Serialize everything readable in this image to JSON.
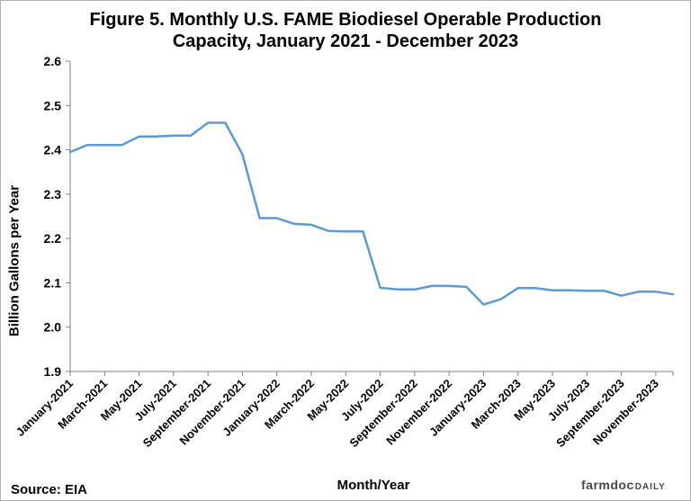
{
  "chart_data": {
    "type": "line",
    "title_line1": "Figure 5. Monthly U.S. FAME Biodiesel Operable Production",
    "title_line2": "Capacity, January 2021 - December 2023",
    "xlabel": "Month/Year",
    "ylabel": "Billion Gallons per Year",
    "ylim": [
      1.9,
      2.6
    ],
    "yticks": [
      "1.9",
      "2.0",
      "2.1",
      "2.2",
      "2.3",
      "2.4",
      "2.5",
      "2.6"
    ],
    "grid": false,
    "line_color": "#5b9bd5",
    "xtick_labels": [
      "January-2021",
      "March-2021",
      "May-2021",
      "July-2021",
      "September-2021",
      "November-2021",
      "January-2022",
      "March-2022",
      "May-2022",
      "July-2022",
      "September-2022",
      "November-2022",
      "January-2023",
      "March-2023",
      "May-2023",
      "July-2023",
      "September-2023",
      "November-2023"
    ],
    "categories": [
      "Jan-2021",
      "Feb-2021",
      "Mar-2021",
      "Apr-2021",
      "May-2021",
      "Jun-2021",
      "Jul-2021",
      "Aug-2021",
      "Sep-2021",
      "Oct-2021",
      "Nov-2021",
      "Dec-2021",
      "Jan-2022",
      "Feb-2022",
      "Mar-2022",
      "Apr-2022",
      "May-2022",
      "Jun-2022",
      "Jul-2022",
      "Aug-2022",
      "Sep-2022",
      "Oct-2022",
      "Nov-2022",
      "Dec-2022",
      "Jan-2023",
      "Feb-2023",
      "Mar-2023",
      "Apr-2023",
      "May-2023",
      "Jun-2023",
      "Jul-2023",
      "Aug-2023",
      "Sep-2023",
      "Oct-2023",
      "Nov-2023",
      "Dec-2023"
    ],
    "values": [
      2.395,
      2.411,
      2.411,
      2.411,
      2.43,
      2.43,
      2.432,
      2.432,
      2.461,
      2.461,
      2.39,
      2.246,
      2.246,
      2.233,
      2.231,
      2.217,
      2.216,
      2.216,
      2.089,
      2.085,
      2.085,
      2.093,
      2.093,
      2.091,
      2.051,
      2.063,
      2.088,
      2.088,
      2.083,
      2.083,
      2.082,
      2.082,
      2.071,
      2.08,
      2.08,
      2.074
    ]
  },
  "source": "Source: EIA",
  "logo": {
    "main": "farmdoc",
    "sub": "DAILY"
  }
}
